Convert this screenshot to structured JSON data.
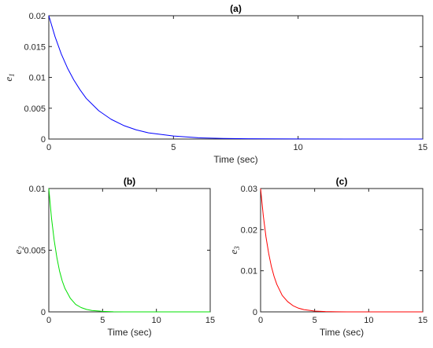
{
  "chart_data": [
    {
      "type": "line",
      "title": "(a)",
      "xlabel": "Time (sec)",
      "ylabel": "e",
      "ylabel_subscript": "1",
      "xlim": [
        0,
        15
      ],
      "ylim": [
        0,
        0.02
      ],
      "xticks": [
        "0",
        "5",
        "10",
        "15"
      ],
      "yticks": [
        "0",
        "0.005",
        "0.01",
        "0.015",
        "0.02"
      ],
      "grid": false,
      "series": [
        {
          "color": "#0000ff",
          "x": [
            0,
            0.25,
            0.5,
            0.75,
            1,
            1.25,
            1.5,
            2,
            2.5,
            3,
            3.5,
            4,
            5,
            6,
            7,
            8,
            10,
            12,
            15
          ],
          "y": [
            0.02,
            0.0166,
            0.0138,
            0.0115,
            0.0096,
            0.008,
            0.0066,
            0.0046,
            0.0032,
            0.0022,
            0.0015,
            0.001,
            0.0005,
            0.0002,
            0.0001,
            5e-05,
            1e-05,
            0,
            0
          ]
        }
      ]
    },
    {
      "type": "line",
      "title": "(b)",
      "xlabel": "Time (sec)",
      "ylabel": "e",
      "ylabel_subscript": "2",
      "xlim": [
        0,
        15
      ],
      "ylim": [
        0,
        0.01
      ],
      "xticks": [
        "0",
        "5",
        "10",
        "15"
      ],
      "yticks": [
        "0",
        "0.005",
        "0.01"
      ],
      "grid": false,
      "series": [
        {
          "color": "#00e000",
          "x": [
            0,
            0.25,
            0.5,
            0.75,
            1,
            1.25,
            1.5,
            2,
            2.5,
            3,
            3.5,
            4,
            5,
            6,
            7,
            8,
            10,
            12,
            15
          ],
          "y": [
            0.01,
            0.0076,
            0.0058,
            0.0044,
            0.0033,
            0.0025,
            0.0019,
            0.0011,
            0.0006,
            0.00035,
            0.0002,
            0.00011,
            4e-05,
            1e-05,
            0,
            0,
            0,
            0,
            0
          ]
        }
      ]
    },
    {
      "type": "line",
      "title": "(c)",
      "xlabel": "Time (sec)",
      "ylabel": "e",
      "ylabel_subscript": "3",
      "xlim": [
        0,
        15
      ],
      "ylim": [
        0,
        0.03
      ],
      "xticks": [
        "0",
        "5",
        "10",
        "15"
      ],
      "yticks": [
        "0",
        "0.01",
        "0.02",
        "0.03"
      ],
      "grid": false,
      "series": [
        {
          "color": "#ff0000",
          "x": [
            0,
            0.25,
            0.5,
            0.75,
            1,
            1.25,
            1.5,
            2,
            2.5,
            3,
            3.5,
            4,
            5,
            6,
            7,
            8,
            10,
            12,
            15
          ],
          "y": [
            0.03,
            0.0234,
            0.0182,
            0.0142,
            0.011,
            0.0086,
            0.0067,
            0.004,
            0.0025,
            0.0015,
            0.0009,
            0.00055,
            0.0002,
            8e-05,
            3e-05,
            1e-05,
            0,
            0,
            0
          ]
        }
      ]
    }
  ]
}
